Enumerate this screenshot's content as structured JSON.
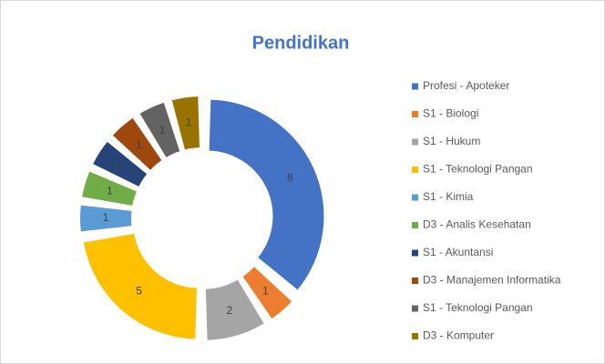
{
  "chart_data": {
    "type": "donut",
    "title": "Pendidikan",
    "categories": [
      "Profesi - Apoteker",
      "S1 - Biologi",
      "S1 - Hukum",
      "S1 - Teknologi Pangan",
      "S1 - Kimia",
      "D3 - Analis Kesehatan",
      "S1 - Akuntansi",
      "D3 - Manajemen Informatika",
      "S1 - Teknologi Pangan",
      "D3 - Komputer"
    ],
    "values": [
      8,
      1,
      2,
      5,
      1,
      1,
      1,
      1,
      1,
      1
    ],
    "colors": [
      "#4472c4",
      "#ed7d31",
      "#a5a5a5",
      "#ffc000",
      "#5b9bd5",
      "#70ad47",
      "#264478",
      "#9e480e",
      "#636363",
      "#997300"
    ],
    "legend": "right"
  }
}
